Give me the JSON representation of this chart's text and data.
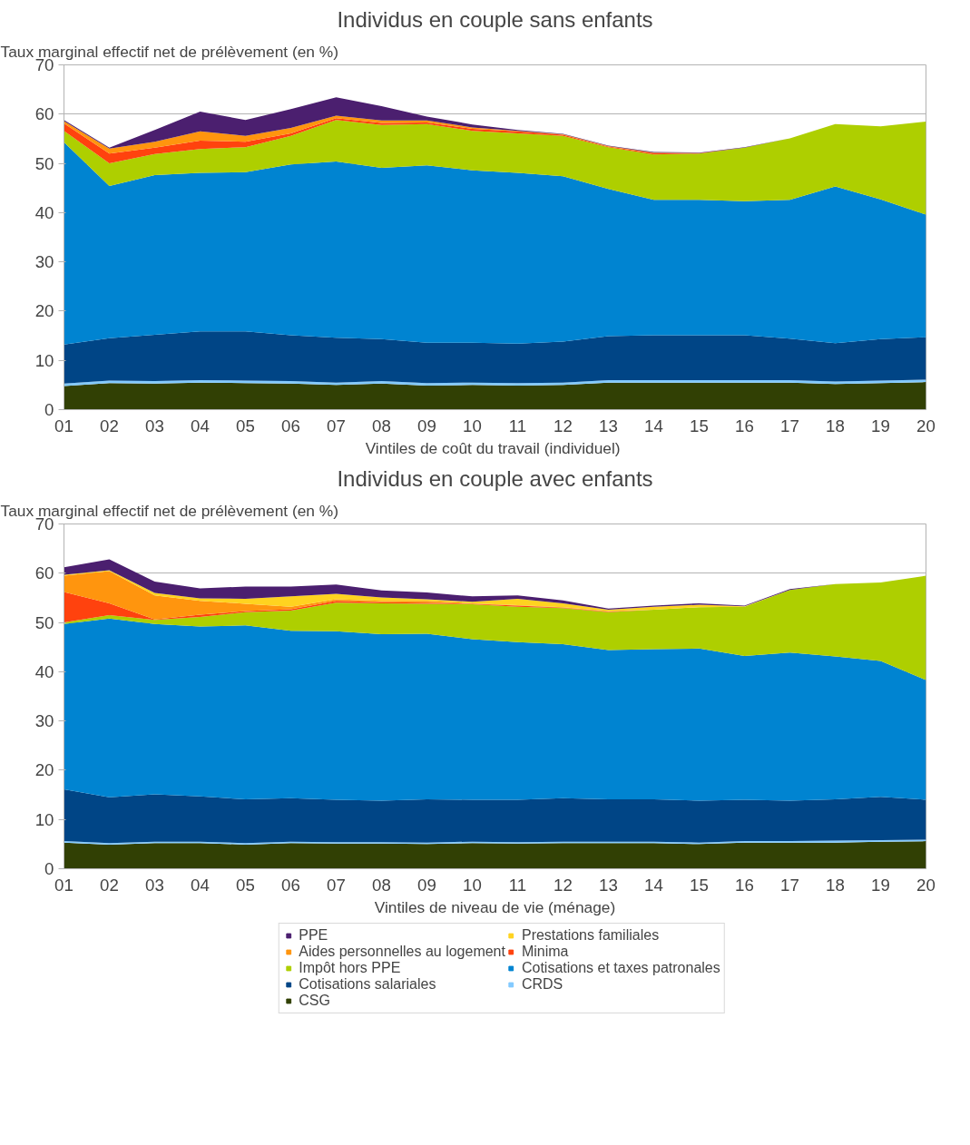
{
  "chart_data": [
    {
      "type": "area",
      "stacked": true,
      "title": "Individus en couple sans enfants",
      "ylabel": "Taux marginal effectif net de prélèvement (en %)",
      "xlabel": "Vintiles de coût du travail  (individuel)",
      "categories": [
        "01",
        "02",
        "03",
        "04",
        "05",
        "06",
        "07",
        "08",
        "09",
        "10",
        "11",
        "12",
        "13",
        "14",
        "15",
        "16",
        "17",
        "18",
        "19",
        "20"
      ],
      "ylim": [
        0,
        70
      ],
      "yticks": [
        0,
        10,
        20,
        30,
        40,
        50,
        60,
        70
      ],
      "grid": "y",
      "legend": false,
      "series": [
        {
          "color": "#314004",
          "values": [
            4.8,
            5.4,
            5.3,
            5.5,
            5.4,
            5.3,
            5.0,
            5.3,
            4.9,
            5.0,
            4.9,
            5.0,
            5.5,
            5.5,
            5.5,
            5.5,
            5.5,
            5.2,
            5.4,
            5.6
          ]
        },
        {
          "color": "#83caff",
          "values": [
            0.5,
            0.5,
            0.5,
            0.5,
            0.5,
            0.5,
            0.5,
            0.5,
            0.5,
            0.5,
            0.5,
            0.5,
            0.5,
            0.5,
            0.5,
            0.5,
            0.5,
            0.5,
            0.5,
            0.5
          ]
        },
        {
          "color": "#004586",
          "values": [
            7.9,
            8.6,
            9.4,
            9.9,
            10.0,
            9.3,
            9.1,
            8.5,
            8.2,
            8.1,
            8.0,
            8.3,
            8.9,
            9.1,
            9.1,
            9.1,
            8.4,
            7.8,
            8.4,
            8.6
          ]
        },
        {
          "color": "#0084d1",
          "values": [
            41.1,
            30.9,
            32.4,
            32.2,
            32.3,
            34.7,
            35.8,
            34.8,
            36.0,
            35.0,
            34.7,
            33.6,
            29.9,
            27.5,
            27.5,
            27.2,
            28.2,
            31.8,
            28.4,
            24.9
          ]
        },
        {
          "color": "#aecf00",
          "values": [
            2.3,
            4.6,
            4.3,
            4.8,
            5.1,
            5.8,
            8.4,
            8.7,
            8.4,
            8.0,
            8.0,
            8.2,
            8.5,
            9.2,
            9.4,
            10.9,
            12.5,
            12.7,
            14.8,
            18.9
          ]
        },
        {
          "color": "#ff420e",
          "values": [
            1.5,
            2.0,
            1.3,
            1.7,
            1.1,
            0.5,
            0.4,
            0.4,
            0.3,
            0.4,
            0.4,
            0.2,
            0.1,
            0.3,
            0.1,
            0,
            0,
            0,
            0,
            0
          ]
        },
        {
          "color": "#ff950e",
          "values": [
            0.5,
            1.0,
            1.2,
            1.9,
            1.2,
            1.1,
            0.5,
            0.5,
            0.4,
            0.3,
            0.1,
            0.1,
            0.1,
            0.1,
            0,
            0,
            0,
            0,
            0,
            0
          ]
        },
        {
          "color": "#4b1f6f",
          "values": [
            0.2,
            0.2,
            2.4,
            4.0,
            3.2,
            3.8,
            3.7,
            2.9,
            0.8,
            0.6,
            0.2,
            0.1,
            0.1,
            0.1,
            0.1,
            0.1,
            0,
            0,
            0,
            0
          ]
        }
      ]
    },
    {
      "type": "area",
      "stacked": true,
      "title": "Individus en couple avec enfants",
      "ylabel": "Taux marginal effectif net de prélèvement (en %)",
      "xlabel": "Vintiles de niveau de vie (ménage)",
      "categories": [
        "01",
        "02",
        "03",
        "04",
        "05",
        "06",
        "07",
        "08",
        "09",
        "10",
        "11",
        "12",
        "13",
        "14",
        "15",
        "16",
        "17",
        "18",
        "19",
        "20"
      ],
      "ylim": [
        0,
        70
      ],
      "yticks": [
        0,
        10,
        20,
        30,
        40,
        50,
        60,
        70
      ],
      "grid": "y",
      "legend": "bottom",
      "series": [
        {
          "name": "CSG",
          "color": "#314004",
          "values": [
            5.3,
            4.9,
            5.2,
            5.2,
            4.9,
            5.2,
            5.1,
            5.1,
            5.0,
            5.2,
            5.1,
            5.2,
            5.2,
            5.2,
            5.0,
            5.3,
            5.3,
            5.3,
            5.5,
            5.6
          ]
        },
        {
          "name": "CRDS",
          "color": "#83caff",
          "values": [
            0.3,
            0.3,
            0.3,
            0.3,
            0.3,
            0.3,
            0.3,
            0.3,
            0.3,
            0.3,
            0.3,
            0.3,
            0.3,
            0.3,
            0.3,
            0.3,
            0.3,
            0.4,
            0.3,
            0.3
          ]
        },
        {
          "name": "Cotisations salariales",
          "color": "#004586",
          "values": [
            10.5,
            9.3,
            9.6,
            9.2,
            8.9,
            8.8,
            8.6,
            8.4,
            8.8,
            8.5,
            8.6,
            8.8,
            8.6,
            8.6,
            8.5,
            8.4,
            8.2,
            8.4,
            8.8,
            8.1
          ]
        },
        {
          "name": "Cotisations et taxes patronales",
          "color": "#0084d1",
          "values": [
            33.6,
            36.3,
            34.6,
            34.5,
            35.3,
            34.0,
            34.2,
            33.8,
            33.6,
            32.6,
            32.0,
            31.3,
            30.3,
            30.5,
            30.9,
            29.2,
            30.1,
            29.0,
            27.6,
            24.3
          ]
        },
        {
          "name": "Impôt hors PPE",
          "color": "#aecf00",
          "values": [
            0.3,
            0.7,
            0.8,
            1.9,
            2.7,
            4.1,
            5.8,
            6.3,
            6.1,
            7.1,
            7.2,
            7.3,
            7.7,
            8.0,
            8.4,
            10.0,
            12.7,
            14.7,
            15.9,
            21.2
          ]
        },
        {
          "name": "Minima",
          "color": "#ff420e",
          "values": [
            6.2,
            2.4,
            0.1,
            0.5,
            0.2,
            0.3,
            0.4,
            0.2,
            0.2,
            0.1,
            0.2,
            0.1,
            0.1,
            0,
            0,
            0,
            0,
            0,
            0,
            0
          ]
        },
        {
          "name": "Aides personnelles au logement",
          "color": "#ff950e",
          "values": [
            3.3,
            6.5,
            4.9,
            2.8,
            1.5,
            0.5,
            0.3,
            0.3,
            0.4,
            0.1,
            0.1,
            0.1,
            0.1,
            0,
            0,
            0,
            0,
            0,
            0,
            0
          ]
        },
        {
          "name": "Prestations familiales",
          "color": "#ffd320",
          "values": [
            0.2,
            0.2,
            0.5,
            0.5,
            1.0,
            2.1,
            1.1,
            0.7,
            0.3,
            0.3,
            1.3,
            0.8,
            0.3,
            0.6,
            0.5,
            0.1,
            0,
            0,
            0,
            0
          ]
        },
        {
          "name": "PPE",
          "color": "#4b1f6f",
          "values": [
            1.5,
            2.2,
            2.3,
            2.0,
            2.5,
            2.0,
            1.9,
            1.4,
            1.4,
            1.1,
            0.7,
            0.6,
            0.2,
            0.2,
            0.3,
            0.1,
            0.2,
            0,
            0,
            0
          ]
        }
      ]
    }
  ]
}
